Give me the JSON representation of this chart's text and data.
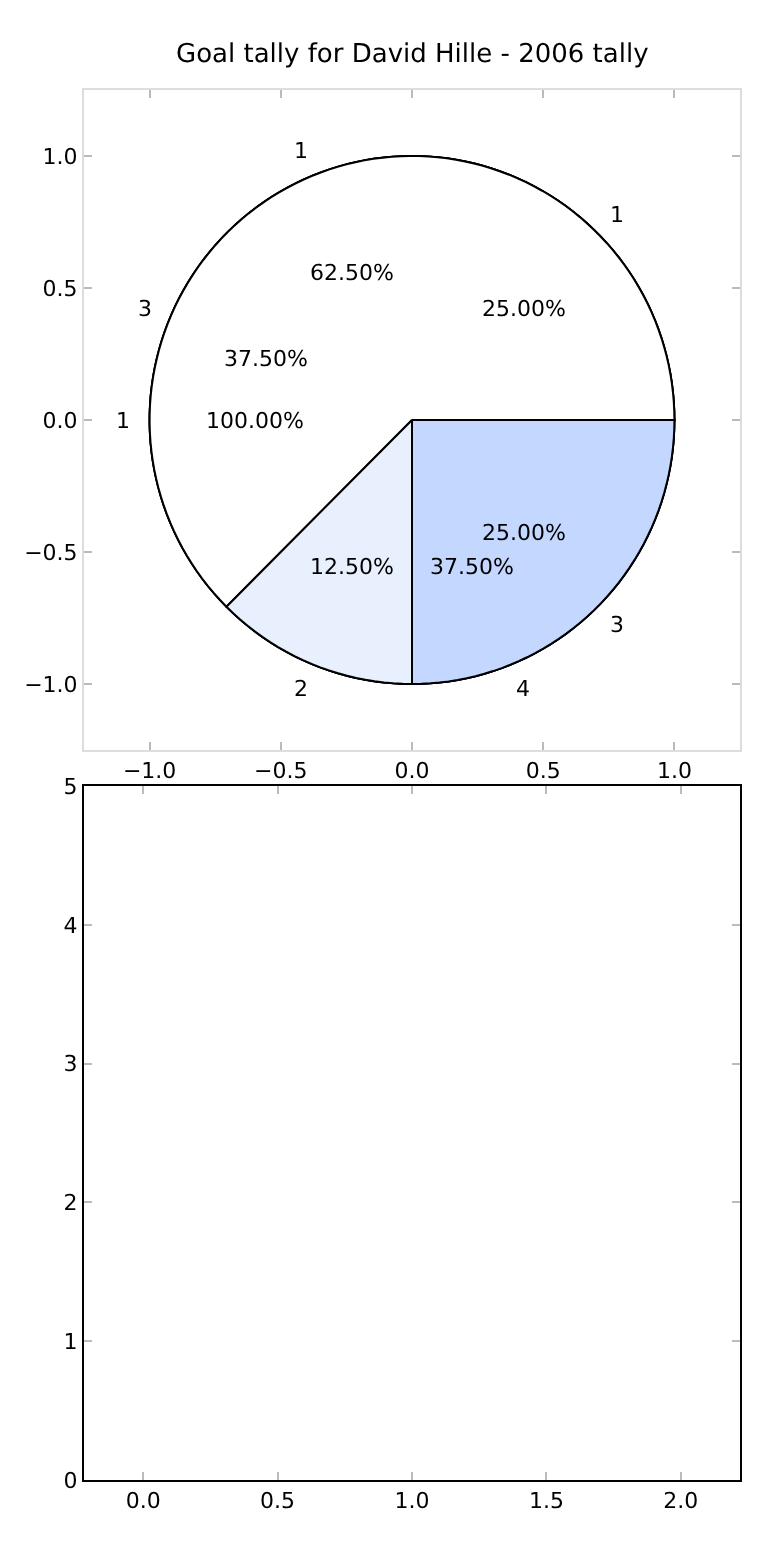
{
  "chart_data": [
    {
      "type": "scatter",
      "title": "Goal tally for David Hille - 2006 tally",
      "xlim": [
        -1.25,
        1.25
      ],
      "ylim": [
        -1.25,
        1.25
      ],
      "xticks": [
        {
          "value": -1,
          "label": "−1.0"
        },
        {
          "value": -0.5,
          "label": "−0.5"
        },
        {
          "value": 0,
          "label": "0.0"
        },
        {
          "value": 0.5,
          "label": "0.5"
        },
        {
          "value": 1,
          "label": "1.0"
        }
      ],
      "yticks": [
        {
          "value": -1,
          "label": "−1.0"
        },
        {
          "value": -0.5,
          "label": "−0.5"
        },
        {
          "value": 0,
          "label": "0.0"
        },
        {
          "value": 0.5,
          "label": "0.5"
        },
        {
          "value": 1,
          "label": "1.0"
        }
      ]
    },
    {
      "type": "pie",
      "categories": [
        "1"
      ],
      "values": [
        100
      ],
      "colors": [
        "#ffffff"
      ],
      "value_labels": [
        "100.00%"
      ]
    },
    {
      "type": "pie",
      "categories": [
        "1",
        "3",
        "4"
      ],
      "values": [
        25,
        37.5,
        37.5
      ],
      "colors": [
        "#ffffff",
        "#e8f0fe",
        "#c4d8ff"
      ],
      "value_labels": [
        "25.00%",
        "37.50%",
        "37.50%"
      ]
    },
    {
      "type": "pie",
      "categories": [
        "1",
        "2",
        "3"
      ],
      "values": [
        62.5,
        12.5,
        25
      ],
      "colors": [
        "#ffffff",
        "#e8f0fe",
        "#c4d8ff"
      ],
      "value_labels": [
        "62.50%",
        "12.50%",
        "25.00%"
      ]
    },
    {
      "type": "scatter",
      "xlim": [
        -0.22,
        2.22
      ],
      "ylim": [
        0,
        5
      ],
      "xticks": [
        {
          "value": 0,
          "label": "0.0"
        },
        {
          "value": 0.5,
          "label": "0.5"
        },
        {
          "value": 1,
          "label": "1.0"
        },
        {
          "value": 1.5,
          "label": "1.5"
        },
        {
          "value": 2,
          "label": "2.0"
        }
      ],
      "yticks": [
        0,
        1,
        2,
        3,
        4,
        5
      ]
    }
  ]
}
